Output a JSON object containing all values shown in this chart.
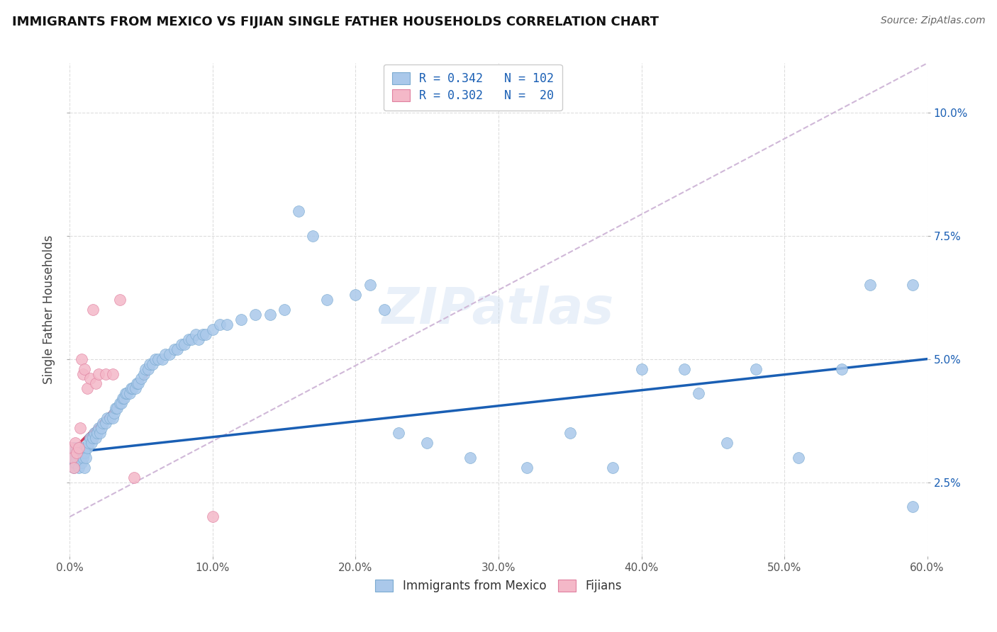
{
  "title": "IMMIGRANTS FROM MEXICO VS FIJIAN SINGLE FATHER HOUSEHOLDS CORRELATION CHART",
  "source": "Source: ZipAtlas.com",
  "ylabel": "Single Father Households",
  "xlim": [
    0.0,
    0.6
  ],
  "ylim": [
    0.01,
    0.11
  ],
  "xticks": [
    0.0,
    0.1,
    0.2,
    0.3,
    0.4,
    0.5,
    0.6
  ],
  "xtick_labels": [
    "0.0%",
    "10.0%",
    "20.0%",
    "30.0%",
    "40.0%",
    "50.0%",
    "60.0%"
  ],
  "yticks": [
    0.025,
    0.05,
    0.075,
    0.1
  ],
  "ytick_labels": [
    "2.5%",
    "5.0%",
    "7.5%",
    "10.0%"
  ],
  "blue_scatter_x": [
    0.001,
    0.002,
    0.002,
    0.003,
    0.003,
    0.003,
    0.004,
    0.004,
    0.005,
    0.005,
    0.006,
    0.006,
    0.007,
    0.007,
    0.008,
    0.008,
    0.009,
    0.009,
    0.01,
    0.01,
    0.011,
    0.012,
    0.013,
    0.014,
    0.015,
    0.016,
    0.017,
    0.018,
    0.019,
    0.02,
    0.021,
    0.022,
    0.023,
    0.025,
    0.026,
    0.028,
    0.03,
    0.031,
    0.032,
    0.033,
    0.035,
    0.036,
    0.037,
    0.038,
    0.039,
    0.04,
    0.042,
    0.043,
    0.044,
    0.046,
    0.047,
    0.048,
    0.05,
    0.052,
    0.053,
    0.055,
    0.056,
    0.058,
    0.06,
    0.062,
    0.065,
    0.067,
    0.07,
    0.073,
    0.075,
    0.078,
    0.08,
    0.083,
    0.085,
    0.088,
    0.09,
    0.093,
    0.095,
    0.1,
    0.105,
    0.11,
    0.12,
    0.13,
    0.14,
    0.15,
    0.16,
    0.17,
    0.18,
    0.2,
    0.21,
    0.22,
    0.23,
    0.25,
    0.28,
    0.32,
    0.35,
    0.38,
    0.4,
    0.43,
    0.46,
    0.48,
    0.51,
    0.54,
    0.56,
    0.59,
    0.44,
    0.59
  ],
  "blue_scatter_y": [
    0.03,
    0.029,
    0.031,
    0.028,
    0.03,
    0.032,
    0.029,
    0.031,
    0.03,
    0.032,
    0.028,
    0.031,
    0.03,
    0.032,
    0.029,
    0.031,
    0.03,
    0.032,
    0.028,
    0.031,
    0.03,
    0.032,
    0.033,
    0.034,
    0.033,
    0.034,
    0.035,
    0.034,
    0.035,
    0.036,
    0.035,
    0.036,
    0.037,
    0.037,
    0.038,
    0.038,
    0.038,
    0.039,
    0.04,
    0.04,
    0.041,
    0.041,
    0.042,
    0.042,
    0.043,
    0.043,
    0.043,
    0.044,
    0.044,
    0.044,
    0.045,
    0.045,
    0.046,
    0.047,
    0.048,
    0.048,
    0.049,
    0.049,
    0.05,
    0.05,
    0.05,
    0.051,
    0.051,
    0.052,
    0.052,
    0.053,
    0.053,
    0.054,
    0.054,
    0.055,
    0.054,
    0.055,
    0.055,
    0.056,
    0.057,
    0.057,
    0.058,
    0.059,
    0.059,
    0.06,
    0.08,
    0.075,
    0.062,
    0.063,
    0.065,
    0.06,
    0.035,
    0.033,
    0.03,
    0.028,
    0.035,
    0.028,
    0.048,
    0.048,
    0.033,
    0.048,
    0.03,
    0.048,
    0.065,
    0.02,
    0.043,
    0.065
  ],
  "pink_scatter_x": [
    0.001,
    0.002,
    0.003,
    0.004,
    0.005,
    0.006,
    0.007,
    0.008,
    0.009,
    0.01,
    0.012,
    0.014,
    0.016,
    0.018,
    0.02,
    0.025,
    0.03,
    0.035,
    0.045,
    0.1
  ],
  "pink_scatter_y": [
    0.032,
    0.03,
    0.028,
    0.033,
    0.031,
    0.032,
    0.036,
    0.05,
    0.047,
    0.048,
    0.044,
    0.046,
    0.06,
    0.045,
    0.047,
    0.047,
    0.047,
    0.062,
    0.026,
    0.018
  ],
  "blue_line_x": [
    0.0,
    0.6
  ],
  "blue_line_y": [
    0.031,
    0.05
  ],
  "pink_line_x": [
    0.0,
    0.055
  ],
  "pink_line_y": [
    0.031,
    0.047
  ],
  "dashed_line_x": [
    0.0,
    0.6
  ],
  "dashed_line_y": [
    0.018,
    0.11
  ],
  "scatter_color_blue": "#aac8ea",
  "scatter_color_pink": "#f4b8c8",
  "scatter_edge_blue": "#7aaad0",
  "scatter_edge_pink": "#e080a0",
  "line_color_blue": "#1a5fb4",
  "line_color_pink": "#d04060",
  "dashed_color": "#d0b8d8",
  "watermark": "ZIPatlas",
  "background_color": "#ffffff",
  "grid_color": "#dddddd",
  "legend1_labels": [
    "R = 0.342   N = 102",
    "R = 0.302   N =  20"
  ],
  "legend2_labels": [
    "Immigrants from Mexico",
    "Fijians"
  ]
}
